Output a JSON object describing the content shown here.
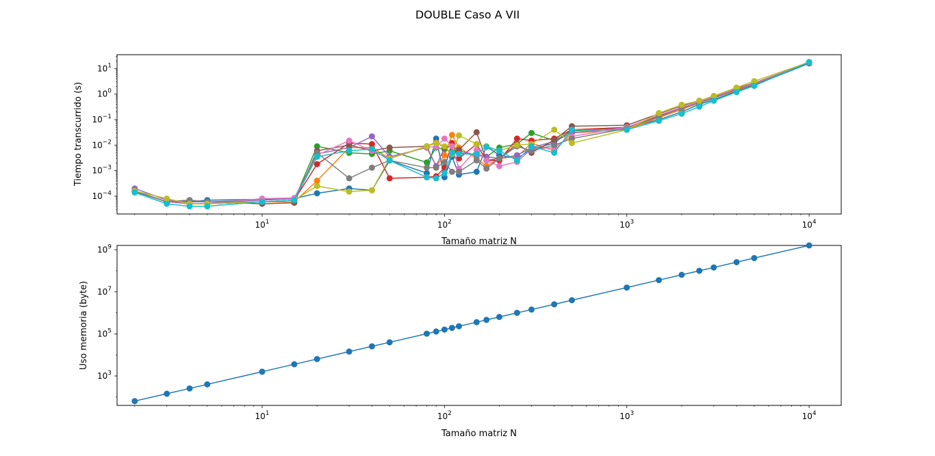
{
  "title": "DOUBLE Caso A VII",
  "chart_data": [
    {
      "type": "line",
      "xlabel": "Tamaño matriz N",
      "ylabel": "Tiempo transcurrido (s)",
      "xscale": "log",
      "yscale": "log",
      "xlim": [
        1.6,
        15000
      ],
      "ylim": [
        2e-05,
        35
      ],
      "xticks": [
        {
          "v": 10,
          "b": "10",
          "e": "1"
        },
        {
          "v": 100,
          "b": "10",
          "e": "2"
        },
        {
          "v": 1000,
          "b": "10",
          "e": "3"
        },
        {
          "v": 10000,
          "b": "10",
          "e": "4"
        }
      ],
      "yticks": [
        {
          "v": 0.0001,
          "b": "10",
          "e": "−4"
        },
        {
          "v": 0.001,
          "b": "10",
          "e": "−3"
        },
        {
          "v": 0.01,
          "b": "10",
          "e": "−2"
        },
        {
          "v": 0.1,
          "b": "10",
          "e": "−1"
        },
        {
          "v": 1,
          "b": "10",
          "e": "0"
        },
        {
          "v": 10,
          "b": "10",
          "e": "1"
        }
      ],
      "x": [
        2,
        3,
        4,
        5,
        10,
        15,
        20,
        30,
        40,
        50,
        80,
        90,
        100,
        110,
        120,
        150,
        170,
        200,
        250,
        300,
        400,
        500,
        1000,
        1500,
        2000,
        2500,
        3000,
        4000,
        5000,
        10000
      ],
      "series": [
        {
          "color": "#1f77b4",
          "values": [
            0.00015,
            6e-05,
            6e-05,
            7e-05,
            7.5e-05,
            8e-05,
            0.00013,
            0.0002,
            0.00017,
            0.0025,
            0.0008,
            0.018,
            0.00055,
            0.0035,
            0.0007,
            0.0009,
            0.009,
            0.004,
            0.003,
            0.007,
            0.012,
            0.04,
            0.045,
            0.1,
            0.2,
            0.4,
            0.6,
            1.3,
            2.2,
            16
          ]
        },
        {
          "color": "#ff7f0e",
          "values": [
            0.00016,
            6e-05,
            5e-05,
            5e-05,
            6e-05,
            6e-05,
            0.0004,
            0.008,
            0.008,
            0.003,
            0.009,
            0.0015,
            0.004,
            0.025,
            0.008,
            0.003,
            0.0015,
            0.003,
            0.0035,
            0.012,
            0.006,
            0.03,
            0.04,
            0.12,
            0.25,
            0.45,
            0.7,
            1.4,
            2.4,
            17
          ]
        },
        {
          "color": "#2ca02c",
          "values": [
            0.00016,
            6e-05,
            5e-05,
            5e-05,
            6e-05,
            7e-05,
            0.009,
            0.005,
            0.0045,
            0.006,
            0.0021,
            0.008,
            0.007,
            0.0055,
            0.005,
            0.004,
            0.0035,
            0.008,
            0.011,
            0.03,
            0.015,
            0.035,
            0.05,
            0.13,
            0.28,
            0.48,
            0.75,
            1.5,
            2.5,
            17
          ]
        },
        {
          "color": "#d62728",
          "values": [
            0.00016,
            6e-05,
            5e-05,
            5e-05,
            6e-05,
            7e-05,
            0.0018,
            0.012,
            0.011,
            0.0005,
            0.00055,
            0.0006,
            0.0013,
            0.012,
            0.003,
            0.011,
            0.0025,
            0.0025,
            0.018,
            0.015,
            0.018,
            0.04,
            0.05,
            0.14,
            0.3,
            0.5,
            0.8,
            1.6,
            2.6,
            17
          ]
        },
        {
          "color": "#9467bd",
          "values": [
            0.0002,
            7e-05,
            6e-05,
            6e-05,
            7e-05,
            8e-05,
            0.0045,
            0.008,
            0.022,
            0.0035,
            0.008,
            0.0015,
            0.008,
            0.0045,
            0.006,
            0.004,
            0.0035,
            0.003,
            0.004,
            0.008,
            0.014,
            0.03,
            0.05,
            0.15,
            0.3,
            0.5,
            0.8,
            1.6,
            2.6,
            17
          ]
        },
        {
          "color": "#8c564b",
          "values": [
            0.00016,
            6e-05,
            7e-05,
            6e-05,
            5e-05,
            5.5e-05,
            0.006,
            0.01,
            0.006,
            0.008,
            0.009,
            0.013,
            0.008,
            0.009,
            0.0065,
            0.032,
            0.0025,
            0.003,
            0.011,
            0.005,
            0.016,
            0.055,
            0.06,
            0.17,
            0.35,
            0.55,
            0.8,
            1.7,
            2.7,
            17
          ]
        },
        {
          "color": "#e377c2",
          "values": [
            0.00016,
            6e-05,
            5e-05,
            5e-05,
            8e-05,
            8.5e-05,
            0.004,
            0.015,
            0.006,
            0.003,
            0.0085,
            0.0085,
            0.018,
            0.009,
            0.0012,
            0.0065,
            0.0025,
            0.0015,
            0.0022,
            0.007,
            0.008,
            0.022,
            0.05,
            0.15,
            0.3,
            0.5,
            0.8,
            1.6,
            2.6,
            17
          ]
        },
        {
          "color": "#7f7f7f",
          "values": [
            0.00016,
            6e-05,
            7e-05,
            6e-05,
            6e-05,
            7e-05,
            0.005,
            0.0005,
            0.0013,
            0.0025,
            0.0013,
            0.0013,
            0.0022,
            0.0009,
            0.0009,
            0.0025,
            0.0012,
            0.003,
            0.009,
            0.006,
            0.01,
            0.018,
            0.045,
            0.13,
            0.28,
            0.45,
            0.7,
            1.5,
            2.4,
            17
          ]
        },
        {
          "color": "#bcbd22",
          "values": [
            0.00016,
            8e-05,
            5e-05,
            5e-05,
            6e-05,
            7e-05,
            0.00025,
            0.00015,
            0.00017,
            0.003,
            0.009,
            0.012,
            0.009,
            0.0045,
            0.024,
            0.011,
            0.009,
            0.006,
            0.01,
            0.011,
            0.04,
            0.012,
            0.04,
            0.18,
            0.38,
            0.55,
            0.85,
            1.8,
            3.2,
            18
          ]
        },
        {
          "color": "#17becf",
          "values": [
            0.00014,
            5e-05,
            4e-05,
            4e-05,
            6e-05,
            7e-05,
            0.0035,
            0.006,
            0.007,
            0.0025,
            0.00055,
            0.0005,
            0.0008,
            0.005,
            0.0045,
            0.0045,
            0.0085,
            0.006,
            0.0025,
            0.009,
            0.005,
            0.04,
            0.04,
            0.09,
            0.17,
            0.32,
            0.55,
            1.2,
            2.1,
            18
          ]
        }
      ]
    },
    {
      "type": "line",
      "xlabel": "Tamaño matriz N",
      "ylabel": "Uso memoria (byte)",
      "xscale": "log",
      "yscale": "log",
      "xlim": [
        1.6,
        15000
      ],
      "ylim": [
        40,
        1600000000
      ],
      "xticks": [
        {
          "v": 10,
          "b": "10",
          "e": "1"
        },
        {
          "v": 100,
          "b": "10",
          "e": "2"
        },
        {
          "v": 1000,
          "b": "10",
          "e": "3"
        },
        {
          "v": 10000,
          "b": "10",
          "e": "4"
        }
      ],
      "yticks": [
        {
          "v": 1000,
          "b": "10",
          "e": "3"
        },
        {
          "v": 100000,
          "b": "10",
          "e": "5"
        },
        {
          "v": 10000000,
          "b": "10",
          "e": "7"
        },
        {
          "v": 1000000000,
          "b": "10",
          "e": "9"
        }
      ],
      "x": [
        2,
        3,
        4,
        5,
        10,
        15,
        20,
        30,
        40,
        50,
        80,
        90,
        100,
        110,
        120,
        150,
        170,
        200,
        250,
        300,
        400,
        500,
        1000,
        1500,
        2000,
        2500,
        3000,
        4000,
        5000,
        10000
      ],
      "series": [
        {
          "color": "#1f77b4",
          "values": [
            64,
            144,
            256,
            400,
            1600,
            3600,
            6400,
            14400,
            25600,
            40000,
            102400,
            129600,
            160000,
            193600,
            230400,
            360000,
            462400,
            640000,
            1000000,
            1440000,
            2560000,
            4000000,
            16000000,
            36000000,
            64000000,
            100000000,
            144000000,
            256000000,
            400000000,
            1600000000
          ]
        }
      ]
    }
  ]
}
